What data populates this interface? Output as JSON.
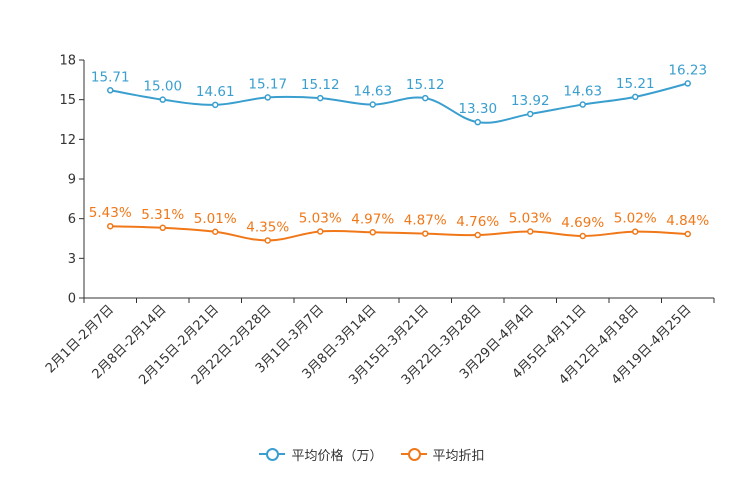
{
  "chart_data": {
    "type": "line",
    "title": "",
    "xlabel": "",
    "ylabel": "",
    "ylim": [
      0,
      18
    ],
    "yticks": [
      0,
      3,
      6,
      9,
      12,
      15,
      18
    ],
    "grid": false,
    "legend_position": "bottom-center",
    "categories": [
      "2月1日-2月7日",
      "2月8日-2月14日",
      "2月15日-2月21日",
      "2月22日-2月28日",
      "3月1日-3月7日",
      "3月8日-3月14日",
      "3月15日-3月21日",
      "3月22日-3月28日",
      "3月29日-4月4日",
      "4月5日-4月11日",
      "4月12日-4月18日",
      "4月19日-4月25日"
    ],
    "series": [
      {
        "name": "平均价格（万）",
        "color": "#3a9fcf",
        "values": [
          15.71,
          15.0,
          14.61,
          15.17,
          15.12,
          14.63,
          15.12,
          13.3,
          13.92,
          14.63,
          15.21,
          16.23
        ],
        "labels": [
          "15.71",
          "15.00",
          "14.61",
          "15.17",
          "15.12",
          "14.63",
          "15.12",
          "13.30",
          "13.92",
          "14.63",
          "15.21",
          "16.23"
        ]
      },
      {
        "name": "平均折扣",
        "color": "#f07819",
        "values": [
          5.43,
          5.31,
          5.01,
          4.35,
          5.03,
          4.97,
          4.87,
          4.76,
          5.03,
          4.69,
          5.02,
          4.84
        ],
        "labels": [
          "5.43%",
          "5.31%",
          "5.01%",
          "4.35%",
          "5.03%",
          "4.97%",
          "4.87%",
          "4.76%",
          "5.03%",
          "4.69%",
          "5.02%",
          "4.84%"
        ]
      }
    ]
  }
}
